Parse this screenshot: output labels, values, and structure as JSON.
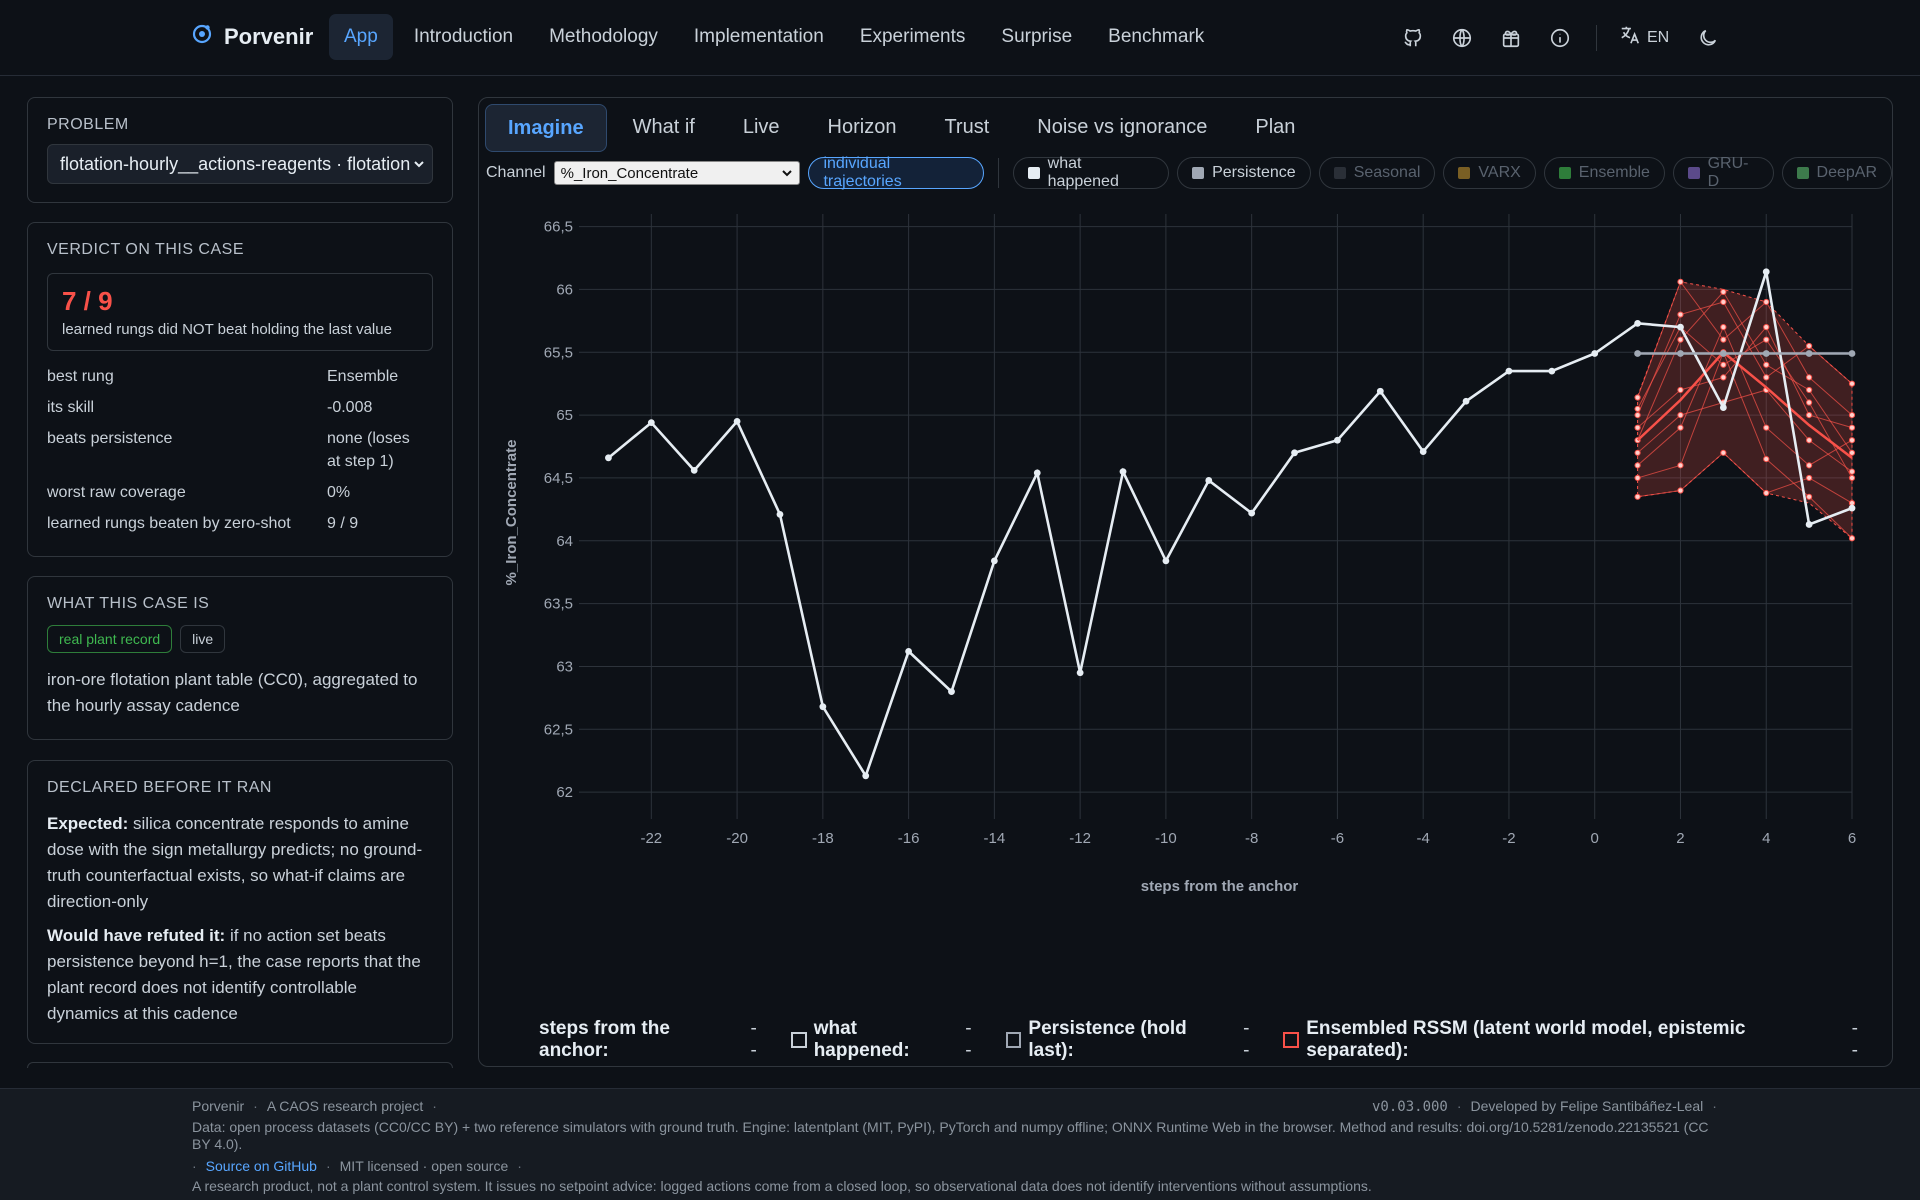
{
  "brand": {
    "name": "Porvenir"
  },
  "nav": {
    "links": [
      "App",
      "Introduction",
      "Methodology",
      "Implementation",
      "Experiments",
      "Surprise",
      "Benchmark"
    ],
    "lang": "EN",
    "icons": [
      "github-icon",
      "globe-icon",
      "gift-icon",
      "info-icon",
      "translate-icon",
      "moon-icon"
    ]
  },
  "problem": {
    "heading": "PROBLEM",
    "value": "flotation-hourly__actions-reagents · flotation"
  },
  "verdict": {
    "heading": "VERDICT ON THIS CASE",
    "score": "7 / 9",
    "score_caption": "learned rungs did NOT beat holding the last value",
    "rows": [
      {
        "k": "best rung",
        "v": "Ensemble"
      },
      {
        "k": "its skill",
        "v": "-0.008"
      },
      {
        "k": "beats persistence",
        "v": "none (loses at step 1)"
      },
      {
        "k": "worst raw coverage",
        "v": "0%"
      },
      {
        "k": "learned rungs beaten by zero-shot",
        "v": "9 / 9"
      }
    ]
  },
  "case": {
    "heading": "WHAT THIS CASE IS",
    "badges": [
      "real plant record",
      "live"
    ],
    "description": "iron-ore flotation plant table (CC0), aggregated to the hourly assay cadence"
  },
  "declared": {
    "heading": "DECLARED BEFORE IT RAN",
    "expected_label": "Expected:",
    "expected": "silica concentrate responds to amine dose with the sign metallurgy predicts; no ground-truth counterfactual exists, so what-if claims are direction-only",
    "refuted_label": "Would have refuted it:",
    "refuted": "if no action set beats persistence beyond h=1, the case reports that the plant record does not identify controllable dynamics at this cadence"
  },
  "tabs": [
    "Imagine",
    "What if",
    "Live",
    "Horizon",
    "Trust",
    "Noise vs ignorance",
    "Plan"
  ],
  "controls": {
    "channel_label": "Channel",
    "channel_value": "%_Iron_Concentrate",
    "trajectories_label": "individual trajectories",
    "series_toggles": [
      {
        "label": "what happened",
        "color": "#e6edf3",
        "on": true
      },
      {
        "label": "Persistence",
        "color": "#a0a8b4",
        "on": true
      },
      {
        "label": "Seasonal",
        "color": "#2a2f37",
        "on": false
      },
      {
        "label": "VARX",
        "color": "#7a5f24",
        "on": false
      },
      {
        "label": "Ensemble",
        "color": "#2e7d3a",
        "on": false
      },
      {
        "label": "GRU-D",
        "color": "#5b4a8a",
        "on": false
      },
      {
        "label": "DeepAR",
        "color": "#3d7a4c",
        "on": false
      }
    ]
  },
  "chart_data": {
    "type": "line",
    "xlabel": "steps from the anchor",
    "ylabel": "%_Iron_Concentrate",
    "xlim": [
      -23.5,
      6
    ],
    "ylim": [
      61.85,
      66.6
    ],
    "x_ticks": [
      -22,
      -20,
      -18,
      -16,
      -14,
      -12,
      -10,
      -8,
      -6,
      -4,
      -2,
      0,
      2,
      4,
      6
    ],
    "y_ticks": [
      62,
      62.5,
      63,
      63.5,
      64,
      64.5,
      65,
      65.5,
      66,
      66.5
    ],
    "y_tick_labels": [
      "62",
      "62,5",
      "63",
      "63,5",
      "64",
      "64,5",
      "65",
      "65,5",
      "66",
      "66,5"
    ],
    "grid": true,
    "series": [
      {
        "name": "what happened",
        "color": "#e6edf3",
        "x": [
          -23,
          -22,
          -21,
          -20,
          -19,
          -18,
          -17,
          -16,
          -15,
          -14,
          -13,
          -12,
          -11,
          -10,
          -9,
          -8,
          -7,
          -6,
          -5,
          -4,
          -3,
          -2,
          -1,
          0,
          1,
          2,
          3,
          4,
          5,
          6
        ],
        "y": [
          64.66,
          64.94,
          64.56,
          64.95,
          64.21,
          62.68,
          62.13,
          63.12,
          62.8,
          63.84,
          64.54,
          62.95,
          64.55,
          63.84,
          64.48,
          64.22,
          64.7,
          64.8,
          65.19,
          64.71,
          65.11,
          65.35,
          65.35,
          65.49,
          65.73,
          65.7,
          65.06,
          66.14,
          64.13,
          64.26
        ]
      },
      {
        "name": "Persistence",
        "color": "#a0a8b4",
        "x": [
          1,
          2,
          3,
          4,
          5,
          6
        ],
        "y": [
          65.49,
          65.49,
          65.49,
          65.49,
          65.49,
          65.49
        ]
      }
    ],
    "ensemble": {
      "name": "Ensembled RSSM",
      "color": "#f85149",
      "x": [
        1,
        2,
        3,
        4,
        5,
        6
      ],
      "mean": [
        64.8,
        65.12,
        65.5,
        65.22,
        64.92,
        64.66
      ],
      "upper": [
        65.15,
        66.06,
        66.0,
        65.9,
        65.55,
        65.25
      ],
      "lower": [
        64.35,
        64.4,
        64.7,
        64.38,
        64.3,
        64.02
      ],
      "trajectories": [
        [
          65.14,
          66.06,
          65.6,
          65.9,
          65.3,
          65.0
        ],
        [
          64.35,
          64.4,
          64.7,
          64.38,
          64.5,
          64.3
        ],
        [
          64.8,
          65.6,
          65.98,
          65.4,
          65.2,
          64.7
        ],
        [
          64.9,
          65.2,
          65.3,
          65.7,
          65.0,
          64.9
        ],
        [
          64.5,
          64.6,
          65.5,
          64.65,
          64.35,
          64.02
        ],
        [
          65.0,
          65.8,
          65.9,
          65.3,
          65.55,
          65.25
        ],
        [
          64.7,
          65.0,
          65.1,
          65.2,
          64.8,
          64.55
        ],
        [
          64.6,
          64.9,
          65.7,
          64.9,
          64.6,
          64.8
        ],
        [
          65.05,
          65.7,
          65.4,
          65.6,
          65.1,
          64.5
        ]
      ]
    }
  },
  "readout": {
    "x_label": "steps from the anchor:",
    "x_val": "--",
    "items": [
      {
        "label": "what happened:",
        "val": "--",
        "color": "#c9d1d9"
      },
      {
        "label": "Persistence (hold last):",
        "val": "--",
        "color": "#a0a8b4"
      },
      {
        "label": "Ensembled RSSM (latent world model, epistemic separated):",
        "val": "--",
        "color": "#f85149"
      }
    ]
  },
  "footer": {
    "l1_a": "Porvenir",
    "l1_b": "A CAOS research project",
    "version": "v0.03.000",
    "developer": "Developed by Felipe Santibáñez-Leal",
    "data_line": "Data: open process datasets (CC0/CC BY) + two reference simulators with ground truth. Engine: latentplant (MIT, PyPI), PyTorch and numpy offline; ONNX Runtime Web in the browser. Method and results: doi.org/10.5281/zenodo.22135521 (CC BY 4.0).",
    "source_link": "Source on GitHub",
    "license": "MIT licensed · open source",
    "disclaimer": "A research product, not a plant control system. It issues no setpoint advice: logged actions come from a closed loop, so observational data does not identify interventions without assumptions."
  }
}
